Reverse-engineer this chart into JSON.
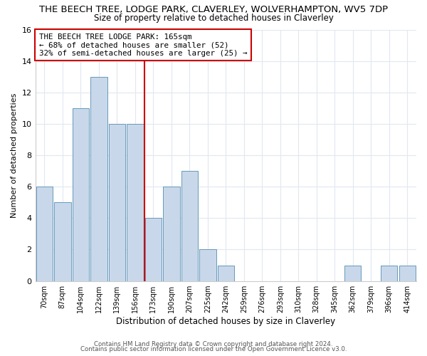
{
  "title": "THE BEECH TREE, LODGE PARK, CLAVERLEY, WOLVERHAMPTON, WV5 7DP",
  "subtitle": "Size of property relative to detached houses in Claverley",
  "xlabel": "Distribution of detached houses by size in Claverley",
  "ylabel": "Number of detached properties",
  "bar_labels": [
    "70sqm",
    "87sqm",
    "104sqm",
    "122sqm",
    "139sqm",
    "156sqm",
    "173sqm",
    "190sqm",
    "207sqm",
    "225sqm",
    "242sqm",
    "259sqm",
    "276sqm",
    "293sqm",
    "310sqm",
    "328sqm",
    "345sqm",
    "362sqm",
    "379sqm",
    "396sqm",
    "414sqm"
  ],
  "bar_heights": [
    6,
    5,
    11,
    13,
    10,
    10,
    4,
    6,
    7,
    2,
    1,
    0,
    0,
    0,
    0,
    0,
    0,
    1,
    0,
    1,
    1
  ],
  "bar_color": "#c8d8ea",
  "bar_edge_color": "#6699bb",
  "ylim": [
    0,
    16
  ],
  "yticks": [
    0,
    2,
    4,
    6,
    8,
    10,
    12,
    14,
    16
  ],
  "vline_x_index": 6,
  "vline_color": "#cc0000",
  "annotation_title": "THE BEECH TREE LODGE PARK: 165sqm",
  "annotation_line1": "← 68% of detached houses are smaller (52)",
  "annotation_line2": "32% of semi-detached houses are larger (25) →",
  "annotation_box_edge_color": "#cc0000",
  "footer1": "Contains HM Land Registry data © Crown copyright and database right 2024.",
  "footer2": "Contains public sector information licensed under the Open Government Licence v3.0.",
  "background_color": "#ffffff",
  "plot_bg_color": "#ffffff",
  "grid_color": "#e0e8f0",
  "title_fontsize": 9.5,
  "subtitle_fontsize": 8.5
}
